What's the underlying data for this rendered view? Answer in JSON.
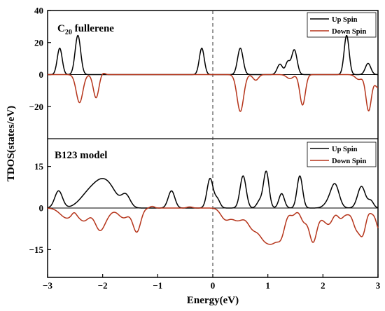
{
  "chart_data": {
    "type": "line",
    "xlabel": "Energy(eV)",
    "ylabel": "TDOS(states/eV)",
    "xlim": [
      -3,
      3
    ],
    "x_ticks": [
      "−3",
      "−2",
      "−1",
      "0",
      "1",
      "2",
      "3"
    ],
    "fermi_level": 0,
    "panels": [
      {
        "title_main": "C",
        "title_sub": "20",
        "title_rest": " fullerene",
        "ylim": [
          -40,
          40
        ],
        "y_ticks": [
          -20,
          0,
          20,
          40
        ],
        "y_tick_labels": [
          "−20",
          "0",
          "20",
          "40"
        ],
        "legend": {
          "position": "top-right"
        },
        "series": [
          {
            "name": "Up Spin",
            "color": "#000000",
            "peaks": [
              [
                -2.78,
                16.5,
                0.045
              ],
              [
                -2.45,
                24.5,
                0.05
              ],
              [
                -0.2,
                16.5,
                0.045
              ],
              [
                0.5,
                16.5,
                0.05
              ],
              [
                1.22,
                6.5,
                0.05
              ],
              [
                1.36,
                7.5,
                0.04
              ],
              [
                1.48,
                15.5,
                0.05
              ],
              [
                2.43,
                24.5,
                0.045
              ],
              [
                2.82,
                7,
                0.05
              ]
            ]
          },
          {
            "name": "Down Spin",
            "color": "#b5341a",
            "peaks": [
              [
                -2.42,
                -17.5,
                0.06
              ],
              [
                -2.12,
                -14.5,
                0.05
              ],
              [
                -2.0,
                1.2,
                0.04
              ],
              [
                0.5,
                -23,
                0.06
              ],
              [
                0.78,
                -3.5,
                0.05
              ],
              [
                1.63,
                -19,
                0.05
              ],
              [
                1.4,
                -2.5,
                0.06
              ],
              [
                2.83,
                -22.5,
                0.05
              ],
              [
                3.0,
                -8,
                0.06
              ],
              [
                2.65,
                -3,
                0.06
              ]
            ]
          }
        ]
      },
      {
        "title_main": "B123 model",
        "title_sub": "",
        "title_rest": "",
        "ylim": [
          -25,
          25
        ],
        "y_ticks": [
          -15,
          0,
          15
        ],
        "y_tick_labels": [
          "−15",
          "0",
          "15"
        ],
        "legend": {
          "position": "top-right"
        },
        "series": [
          {
            "name": "Up Spin",
            "color": "#000000",
            "peaks": [
              [
                -2.8,
                6.2,
                0.07
              ],
              [
                -2.32,
                2.4,
                0.15
              ],
              [
                -2.15,
                4.8,
                0.16
              ],
              [
                -1.98,
                6.2,
                0.14
              ],
              [
                -1.82,
                3.6,
                0.12
              ],
              [
                -1.58,
                4.6,
                0.08
              ],
              [
                -0.75,
                6.2,
                0.06
              ],
              [
                -0.05,
                10.6,
                0.055
              ],
              [
                0.08,
                3.2,
                0.05
              ],
              [
                0.55,
                11.6,
                0.055
              ],
              [
                0.97,
                13.2,
                0.05
              ],
              [
                0.85,
                2.5,
                0.05
              ],
              [
                1.25,
                5.2,
                0.05
              ],
              [
                1.58,
                11.6,
                0.05
              ],
              [
                2.22,
                8.2,
                0.075
              ],
              [
                2.1,
                1.8,
                0.08
              ],
              [
                2.7,
                7.8,
                0.07
              ],
              [
                2.87,
                2.5,
                0.05
              ]
            ]
          },
          {
            "name": "Down Spin",
            "color": "#b5341a",
            "peaks": [
              [
                -2.65,
                -3.6,
                0.12
              ],
              [
                -2.52,
                1.2,
                0.04
              ],
              [
                -2.34,
                -4.5,
                0.1
              ],
              [
                -2.05,
                -7.8,
                0.09
              ],
              [
                -1.9,
                -1.5,
                0.08
              ],
              [
                -1.62,
                -3.5,
                0.1
              ],
              [
                -1.38,
                -8.5,
                0.07
              ],
              [
                -1.1,
                0.6,
                0.04
              ],
              [
                -0.42,
                0.4,
                0.05
              ],
              [
                0.22,
                -3.5,
                0.08
              ],
              [
                0.45,
                -4.5,
                0.12
              ],
              [
                0.72,
                -6.3,
                0.09
              ],
              [
                0.92,
                -9.2,
                0.1
              ],
              [
                1.1,
                -10.2,
                0.1
              ],
              [
                1.25,
                -7.5,
                0.07
              ],
              [
                1.45,
                -2.5,
                0.06
              ],
              [
                1.65,
                -4.5,
                0.06
              ],
              [
                1.82,
                -12.2,
                0.07
              ],
              [
                2.0,
                -3,
                0.07
              ],
              [
                2.12,
                -5,
                0.07
              ],
              [
                2.32,
                -3.5,
                0.06
              ],
              [
                2.45,
                -1.8,
                0.06
              ],
              [
                2.6,
                -6.5,
                0.06
              ],
              [
                2.72,
                -9.2,
                0.06
              ],
              [
                2.9,
                -1.8,
                0.05
              ],
              [
                3.02,
                -7.5,
                0.05
              ]
            ]
          }
        ]
      }
    ]
  }
}
